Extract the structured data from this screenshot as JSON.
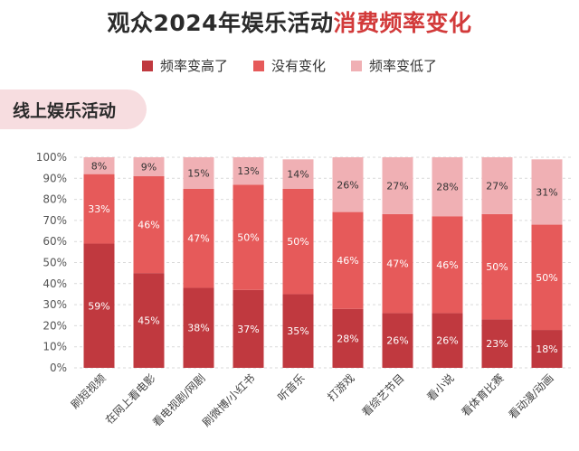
{
  "title_part1": "观众2024年娱乐活动",
  "title_part2": "消费频率变化",
  "section_label": "线上娱乐活动",
  "colors": {
    "up": "#c0393f",
    "same": "#e65a5a",
    "down": "#f0b0b4",
    "title_accent": "#d23a3a"
  },
  "chart_data": {
    "type": "bar",
    "stacked": true,
    "categories": [
      "刷短视频",
      "在网上看电影",
      "看电视剧/网剧",
      "刷微博/小红书",
      "听音乐",
      "打游戏",
      "看综艺节目",
      "看小说",
      "看体育比赛",
      "看动漫/动画"
    ],
    "series": [
      {
        "name": "频率变高了",
        "values": [
          59,
          45,
          38,
          37,
          35,
          28,
          26,
          26,
          23,
          18
        ]
      },
      {
        "name": "没有变化",
        "values": [
          33,
          46,
          47,
          50,
          50,
          46,
          47,
          46,
          50,
          50
        ]
      },
      {
        "name": "频率变低了",
        "values": [
          8,
          9,
          15,
          13,
          14,
          26,
          27,
          28,
          27,
          31
        ]
      }
    ],
    "y_ticks": [
      "0%",
      "10%",
      "20%",
      "30%",
      "40%",
      "50%",
      "60%",
      "70%",
      "80%",
      "90%",
      "100%"
    ],
    "ylim": [
      0,
      100
    ],
    "value_suffix": "%",
    "legend_position": "top"
  }
}
